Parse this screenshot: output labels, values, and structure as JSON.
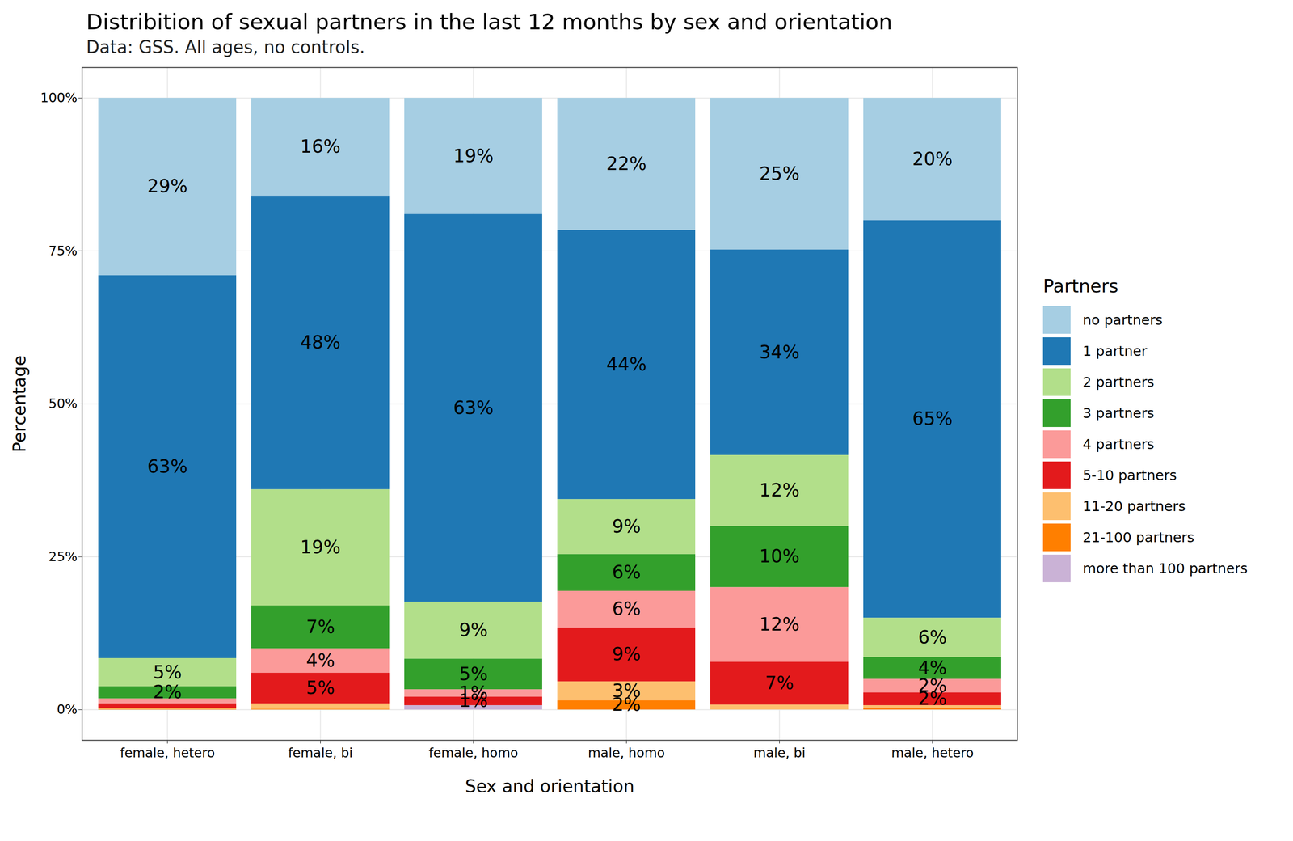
{
  "chart_data": {
    "type": "bar",
    "title": "Distribition of sexual partners in the last 12 months by sex and orientation",
    "subtitle": "Data: GSS. All ages, no controls.",
    "x_label": "Sex and orientation",
    "y_label": "Percentage",
    "legend_title": "Partners",
    "categories": [
      "female, hetero",
      "female, bi",
      "female, homo",
      "male, homo",
      "male, bi",
      "male, hetero"
    ],
    "series": [
      {
        "name": "no partners",
        "color": "#A6CEE3",
        "values": [
          29,
          16,
          19,
          21.6,
          24.8,
          20
        ],
        "value_labels": [
          "29%",
          "16%",
          "19%",
          "22%",
          "25%",
          "20%"
        ]
      },
      {
        "name": "1 partner",
        "color": "#1F78B4",
        "values": [
          62.6,
          48,
          63.4,
          44,
          33.6,
          65
        ],
        "value_labels": [
          "63%",
          "48%",
          "63%",
          "44%",
          "34%",
          "65%"
        ]
      },
      {
        "name": "2 partners",
        "color": "#B2DF8A",
        "values": [
          4.6,
          19,
          9.3,
          9,
          11.6,
          6.4
        ],
        "value_labels": [
          "5%",
          "19%",
          "9%",
          "9%",
          "12%",
          "6%"
        ]
      },
      {
        "name": "3 partners",
        "color": "#33A02C",
        "values": [
          2,
          7,
          5,
          6,
          10,
          3.6
        ],
        "value_labels": [
          "2%",
          "7%",
          "5%",
          "6%",
          "10%",
          "4%"
        ]
      },
      {
        "name": "4 partners",
        "color": "#FB9A99",
        "values": [
          0.8,
          4,
          1.2,
          6,
          12.2,
          2.2
        ],
        "value_labels": [
          null,
          "4%",
          "1%",
          "6%",
          "12%",
          "2%"
        ]
      },
      {
        "name": "5-10 partners",
        "color": "#E31A1C",
        "values": [
          0.8,
          5,
          1.4,
          8.8,
          7,
          2.1
        ],
        "value_labels": [
          null,
          "5%",
          "1%",
          "9%",
          "7%",
          "2%"
        ]
      },
      {
        "name": "11-20 partners",
        "color": "#FDBF6F",
        "values": [
          0.1,
          0.9,
          0,
          3.1,
          0.8,
          0.4
        ],
        "value_labels": [
          null,
          null,
          null,
          "3%",
          null,
          null
        ]
      },
      {
        "name": "21-100 partners",
        "color": "#FF7F00",
        "values": [
          0.1,
          0.1,
          0,
          1.5,
          0,
          0.3
        ],
        "value_labels": [
          null,
          null,
          null,
          "2%",
          null,
          null
        ]
      },
      {
        "name": "more than 100 partners",
        "color": "#CAB2D6",
        "values": [
          0,
          0,
          0.7,
          0,
          0,
          0
        ],
        "value_labels": [
          null,
          null,
          null,
          null,
          null,
          null
        ]
      }
    ],
    "ylim": [
      -5,
      105
    ],
    "yticks": [
      {
        "value": 0,
        "label": "0%"
      },
      {
        "value": 25,
        "label": "25%"
      },
      {
        "value": 50,
        "label": "50%"
      },
      {
        "value": 75,
        "label": "75%"
      },
      {
        "value": 100,
        "label": "100%"
      }
    ],
    "stacked": true,
    "data_labels": true,
    "grid": true,
    "legend": "right"
  }
}
